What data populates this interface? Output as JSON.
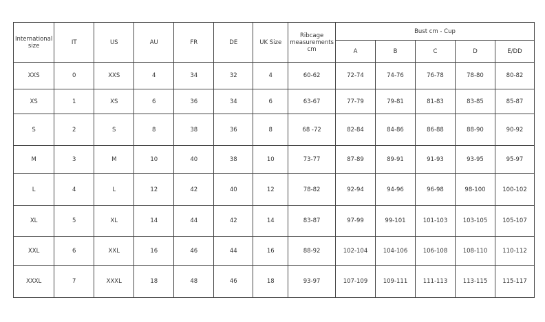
{
  "headers": [
    "International size",
    "IT",
    "US",
    "AU",
    "FR",
    "DE",
    "UK Size",
    "Ribcage measurements cm"
  ],
  "bust_group": "Bust cm - Cup",
  "cups": [
    "A",
    "B",
    "C",
    "D",
    "E/DD"
  ],
  "rows": [
    [
      "XXS",
      "0",
      "XXS",
      "4",
      "34",
      "32",
      "4",
      "60-62",
      "72-74",
      "74-76",
      "76-78",
      "78-80",
      "80-82"
    ],
    [
      "XS",
      "1",
      "XS",
      "6",
      "36",
      "34",
      "6",
      "63-67",
      "77-79",
      "79-81",
      "81-83",
      "83-85",
      "85-87"
    ],
    [
      "S",
      "2",
      "S",
      "8",
      "38",
      "36",
      "8",
      "68 -72",
      "82-84",
      "84-86",
      "86-88",
      "88-90",
      "90-92"
    ],
    [
      "M",
      "3",
      "M",
      "10",
      "40",
      "38",
      "10",
      "73-77",
      "87-89",
      "89-91",
      "91-93",
      "93-95",
      "95-97"
    ],
    [
      "L",
      "4",
      "L",
      "12",
      "42",
      "40",
      "12",
      "78-82",
      "92-94",
      "94-96",
      "96-98",
      "98-100",
      "100-102"
    ],
    [
      "XL",
      "5",
      "XL",
      "14",
      "44",
      "42",
      "14",
      "83-87",
      "97-99",
      "99-101",
      "101-103",
      "103-105",
      "105-107"
    ],
    [
      "XXL",
      "6",
      "XXL",
      "16",
      "46",
      "44",
      "16",
      "88-92",
      "102-104",
      "104-106",
      "106-108",
      "108-110",
      "110-112"
    ],
    [
      "XXXL",
      "7",
      "XXXL",
      "18",
      "48",
      "46",
      "18",
      "93-97",
      "107-109",
      "109-111",
      "111-113",
      "113-115",
      "115-117"
    ]
  ]
}
